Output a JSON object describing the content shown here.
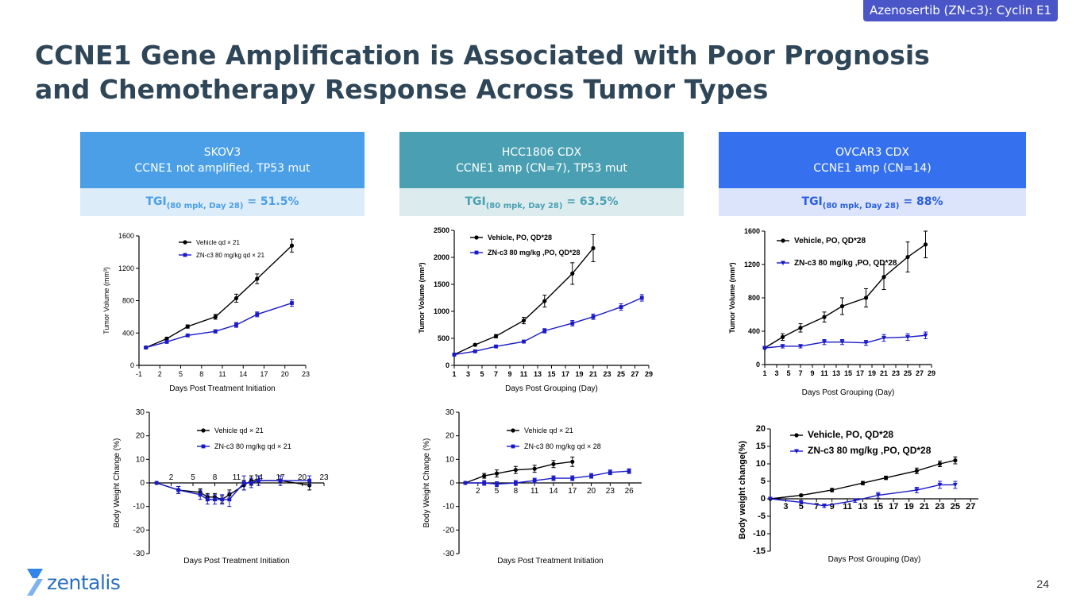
{
  "tag": "Azenosertib (ZN-c3): Cyclin E1",
  "title": "CCNE1 Gene Amplification is Associated with Poor Prognosis and Chemotherapy Response Across Tumor Types",
  "page_number": "24",
  "logo_text": "zentalis",
  "colors": {
    "title": "#2e4657",
    "vehicle": "#000000",
    "treated": "#1a1ac8"
  },
  "panels": [
    {
      "name": "SKOV3",
      "subtitle": "CCNE1 not amplified, TP53 mut",
      "tgi_prefix": "TGI",
      "tgi_sub": "(80 mpk, Day 28)",
      "tgi_value": " = 51.5%",
      "header_color": "#4a9fe6",
      "band_color": "#dcecf8"
    },
    {
      "name": "HCC1806 CDX",
      "subtitle": "CCNE1 amp (CN=7), TP53 mut",
      "tgi_prefix": "TGI",
      "tgi_sub": "(80 mpk, Day 28)",
      "tgi_value": " = 63.5%",
      "header_color": "#4aa0b2",
      "band_color": "#dcecee"
    },
    {
      "name": "OVCAR3 CDX",
      "subtitle": "CCNE1 amp (CN=14)",
      "tgi_prefix": "TGI",
      "tgi_sub": "(80 mpk, Day 28)",
      "tgi_value": " = 88%",
      "header_color": "#3570ee",
      "band_color": "#dbe4fb"
    }
  ],
  "chart_data": [
    {
      "id": "c1",
      "type": "line",
      "ylabel": "Tumor Volume (mm³)",
      "xlabel": "Days Post Treatment Initiation",
      "xlim": [
        -1,
        23
      ],
      "ylim": [
        0,
        1600
      ],
      "xticks": [
        -1,
        2,
        5,
        8,
        11,
        14,
        17,
        20,
        23
      ],
      "yticks": [
        0,
        400,
        800,
        1200,
        1600
      ],
      "legend_position": "top-left",
      "series": [
        {
          "name": "Vehicle qd × 21",
          "marker": "circle",
          "x": [
            0,
            3,
            6,
            10,
            13,
            16,
            21
          ],
          "y": [
            220,
            330,
            480,
            600,
            830,
            1070,
            1480
          ],
          "err": [
            10,
            15,
            20,
            30,
            50,
            60,
            80
          ]
        },
        {
          "name": "ZN-c3 80 mg/kg qd × 21",
          "marker": "square",
          "x": [
            0,
            3,
            6,
            10,
            13,
            16,
            21
          ],
          "y": [
            220,
            290,
            370,
            420,
            500,
            630,
            770
          ],
          "err": [
            10,
            12,
            15,
            20,
            30,
            30,
            40
          ]
        }
      ]
    },
    {
      "id": "c2",
      "type": "line",
      "ylabel": "Tumor Volume (mm³)",
      "xlabel": "Days Post Grouping (Day)",
      "xlim": [
        1,
        29
      ],
      "ylim": [
        0,
        2500
      ],
      "xticks": [
        1,
        3,
        5,
        7,
        9,
        11,
        13,
        15,
        17,
        19,
        21,
        23,
        25,
        27,
        29
      ],
      "yticks": [
        0,
        500,
        1000,
        1500,
        2000,
        2500
      ],
      "legend_position": "top-left",
      "series": [
        {
          "name": "Vehicle, PO, QD*28",
          "marker": "circle",
          "x": [
            1,
            4,
            7,
            11,
            14,
            18,
            21
          ],
          "y": [
            200,
            380,
            540,
            830,
            1190,
            1700,
            2170
          ],
          "err": [
            10,
            20,
            30,
            60,
            110,
            200,
            250
          ]
        },
        {
          "name": "ZN-c3 80 mg/kg ,PO, QD*28",
          "marker": "square",
          "x": [
            1,
            4,
            7,
            11,
            14,
            18,
            21,
            25,
            28
          ],
          "y": [
            200,
            260,
            350,
            440,
            640,
            780,
            900,
            1080,
            1250
          ],
          "err": [
            10,
            15,
            20,
            25,
            40,
            50,
            50,
            60,
            60
          ]
        }
      ]
    },
    {
      "id": "c3",
      "type": "line",
      "ylabel": "Tumor Volume (mm³)",
      "xlabel": "Days Post Grouping (Day)",
      "xlim": [
        1,
        29
      ],
      "ylim": [
        0,
        1600
      ],
      "xticks": [
        1,
        3,
        5,
        7,
        9,
        11,
        13,
        15,
        17,
        19,
        21,
        23,
        25,
        27,
        29
      ],
      "yticks": [
        0,
        400,
        800,
        1200,
        1600
      ],
      "legend_position": "top-left",
      "series": [
        {
          "name": "Vehicle, PO, QD*28",
          "marker": "circle",
          "x": [
            1,
            4,
            7,
            11,
            14,
            18,
            21,
            25,
            28
          ],
          "y": [
            200,
            330,
            440,
            570,
            700,
            800,
            1050,
            1290,
            1440
          ],
          "err": [
            10,
            40,
            50,
            60,
            100,
            110,
            150,
            180,
            160
          ]
        },
        {
          "name": "ZN-c3 80 mg/kg ,PO, QD*28",
          "marker": "triangle",
          "x": [
            1,
            4,
            7,
            11,
            14,
            18,
            21,
            25,
            28
          ],
          "y": [
            200,
            220,
            220,
            270,
            270,
            260,
            320,
            330,
            350
          ],
          "err": [
            10,
            20,
            20,
            30,
            30,
            30,
            40,
            40,
            40
          ]
        }
      ]
    },
    {
      "id": "c4",
      "type": "line",
      "ylabel": "Body Weight Change (%)",
      "xlabel": "Days Post Treatment Initiation",
      "xlim": [
        -1,
        23
      ],
      "ylim": [
        -30,
        30
      ],
      "xticks": [
        2,
        5,
        8,
        11,
        14,
        17,
        20,
        23
      ],
      "yticks": [
        -30,
        -20,
        -10,
        0,
        10,
        20,
        30
      ],
      "legend_position": "top-right",
      "series": [
        {
          "name": "Vehicle qd × 21",
          "marker": "circle",
          "x": [
            0,
            3,
            6,
            7,
            8,
            9,
            10,
            12,
            13,
            14,
            17,
            21
          ],
          "y": [
            0,
            -3,
            -4,
            -6,
            -6,
            -7,
            -5,
            -1,
            1,
            1,
            1,
            -1
          ],
          "err": [
            0,
            1.5,
            1.5,
            1.5,
            1.5,
            1.5,
            2,
            2,
            2,
            2,
            2,
            2
          ]
        },
        {
          "name": "ZN-c3 80 mg/kg qd × 21",
          "marker": "square",
          "x": [
            0,
            3,
            6,
            7,
            8,
            9,
            10,
            12,
            13,
            14,
            17,
            21
          ],
          "y": [
            0,
            -3,
            -5,
            -7,
            -7,
            -7,
            -7,
            0,
            0,
            1,
            1,
            1
          ],
          "err": [
            0,
            1.5,
            2,
            2,
            2,
            2,
            3,
            3,
            2,
            2,
            2,
            2
          ]
        }
      ]
    },
    {
      "id": "c5",
      "type": "line",
      "ylabel": "Body Weight Change (%)",
      "xlabel": "Days Post Treatment Initiation",
      "xlim": [
        -1,
        28
      ],
      "ylim": [
        -30,
        30
      ],
      "xticks": [
        2,
        5,
        8,
        11,
        14,
        17,
        20,
        23,
        26
      ],
      "yticks": [
        -30,
        -20,
        -10,
        0,
        10,
        20,
        30
      ],
      "legend_position": "top-right",
      "series": [
        {
          "name": "Vehicle qd × 21",
          "marker": "circle",
          "x": [
            0,
            3,
            5,
            8,
            11,
            14,
            17
          ],
          "y": [
            0,
            3,
            4,
            5.5,
            6,
            8,
            9
          ],
          "err": [
            0,
            1,
            1.5,
            1.5,
            1.5,
            1.5,
            2
          ]
        },
        {
          "name": "ZN-c3 80 mg/kg qd × 28",
          "marker": "square",
          "x": [
            0,
            3,
            5,
            8,
            11,
            14,
            17,
            20,
            23,
            26
          ],
          "y": [
            0,
            0,
            -0.5,
            0,
            1,
            2,
            2,
            3,
            4.5,
            5
          ],
          "err": [
            0,
            1,
            1,
            1,
            1,
            1,
            1,
            1,
            1,
            1
          ]
        }
      ]
    },
    {
      "id": "c6",
      "type": "line",
      "ylabel": "Body weight change(%)",
      "xlabel": "Days Post Grouping (Day)",
      "xlim": [
        1,
        28
      ],
      "ylim": [
        -15,
        20
      ],
      "xticks": [
        3,
        5,
        7,
        9,
        11,
        13,
        15,
        17,
        19,
        21,
        23,
        25,
        27
      ],
      "yticks": [
        -15,
        -10,
        -5,
        0,
        5,
        10,
        15,
        20
      ],
      "legend_position": "top-left",
      "series": [
        {
          "name": "Vehicle, PO, QD*28",
          "marker": "circle",
          "x": [
            1,
            5,
            9,
            13,
            16,
            20,
            23,
            25
          ],
          "y": [
            0,
            1,
            2.5,
            4.5,
            6,
            8,
            10,
            11
          ],
          "err": [
            0,
            0.3,
            0.5,
            0.5,
            0.5,
            0.8,
            0.8,
            1
          ]
        },
        {
          "name": "ZN-c3 80 mg/kg ,PO, QD*28",
          "marker": "triangle",
          "x": [
            1,
            5,
            8,
            12,
            15,
            20,
            23,
            25
          ],
          "y": [
            0,
            -1,
            -2,
            -0.5,
            1,
            2.5,
            4,
            4
          ],
          "err": [
            0,
            0.5,
            0.5,
            0.5,
            0.8,
            0.8,
            1,
            1
          ]
        }
      ]
    }
  ]
}
